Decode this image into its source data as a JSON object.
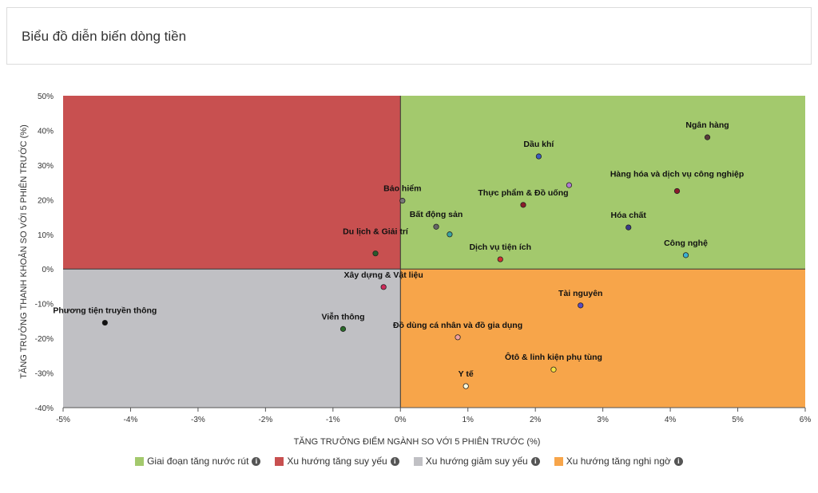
{
  "page": {
    "title": "Biểu đồ diễn biến dòng tiền"
  },
  "chart_data": {
    "type": "scatter",
    "xlabel": "TĂNG TRƯỞNG ĐIỂM NGÀNH SO VỚI 5 PHIÊN TRƯỚC (%)",
    "ylabel": "TĂNG TRƯỞNG THANH KHOẢN SO VỚI 5 PHIÊN TRƯỚC (%)",
    "xlim": [
      -5,
      6
    ],
    "ylim": [
      -40,
      50
    ],
    "xticks": [
      -5,
      -4,
      -3,
      -2,
      -1,
      0,
      1,
      2,
      3,
      4,
      5,
      6
    ],
    "yticks": [
      -40,
      -30,
      -20,
      -10,
      0,
      10,
      20,
      30,
      40,
      50
    ],
    "tick_suffix": "%",
    "grid": false,
    "legend_position": "bottom",
    "quadrants": [
      {
        "name": "Giai đoạn tăng nước rút",
        "color": "#a3c96d"
      },
      {
        "name": "Xu hướng tăng suy yếu",
        "color": "#c85050"
      },
      {
        "name": "Xu hướng giảm suy yếu",
        "color": "#c0c0c4"
      },
      {
        "name": "Xu hướng tăng nghi ngờ",
        "color": "#f7a54a"
      }
    ],
    "points": [
      {
        "label": "Ngân hàng",
        "x": 4.55,
        "y": 38,
        "color": "#5a3a3a",
        "anchor": "middle",
        "dy": -12
      },
      {
        "label": "Dầu khí",
        "x": 2.05,
        "y": 32.5,
        "color": "#3b5bbf",
        "anchor": "middle",
        "dy": -12
      },
      {
        "label": "Hàng hóa và dịch vụ công nghiệp",
        "x": 4.1,
        "y": 22.5,
        "color": "#8b1a2a",
        "anchor": "middle",
        "dy": -18
      },
      {
        "label": "Thực phẩm & Đồ uống",
        "x": 1.82,
        "y": 18.5,
        "color": "#8b1a2a",
        "anchor": "middle",
        "dy": -12
      },
      {
        "label": "",
        "x": 2.5,
        "y": 24.2,
        "color": "#b07ad0",
        "anchor": "middle",
        "dy": 0
      },
      {
        "label": "Bảo hiểm",
        "x": 0.03,
        "y": 19.7,
        "color": "#777777",
        "anchor": "middle",
        "dy": -12
      },
      {
        "label": "Bất động sản",
        "x": 0.53,
        "y": 12.2,
        "color": "#666666",
        "anchor": "middle",
        "dy": -12
      },
      {
        "label": "",
        "x": 0.73,
        "y": 10,
        "color": "#3aa3a3",
        "anchor": "middle",
        "dy": 0
      },
      {
        "label": "Hóa chất",
        "x": 3.38,
        "y": 12,
        "color": "#3a3a8a",
        "anchor": "middle",
        "dy": -12
      },
      {
        "label": "Công nghệ",
        "x": 4.23,
        "y": 4,
        "color": "#3ab0d0",
        "anchor": "middle",
        "dy": -12
      },
      {
        "label": "Du lịch & Giải trí",
        "x": -0.37,
        "y": 4.5,
        "color": "#2a5a2a",
        "anchor": "middle",
        "dy": -24
      },
      {
        "label": "Dịch vụ tiện ích",
        "x": 1.48,
        "y": 2.8,
        "color": "#d03030",
        "anchor": "middle",
        "dy": -12
      },
      {
        "label": "Xây dựng & Vật liệu",
        "x": -0.25,
        "y": -5.2,
        "color": "#d02a5a",
        "anchor": "middle",
        "dy": -12
      },
      {
        "label": "Tài nguyên",
        "x": 2.67,
        "y": -10.5,
        "color": "#5a4ac0",
        "anchor": "middle",
        "dy": -12
      },
      {
        "label": "Phương tiện truyền thông",
        "x": -4.38,
        "y": -15.5,
        "color": "#111111",
        "anchor": "middle",
        "dy": -12
      },
      {
        "label": "Viễn thông",
        "x": -0.85,
        "y": -17.3,
        "color": "#2a6a2a",
        "anchor": "middle",
        "dy": -12
      },
      {
        "label": "Đồ dùng cá nhân và đồ gia dụng",
        "x": 0.85,
        "y": -19.7,
        "color": "#f4a0a0",
        "anchor": "middle",
        "dy": -12
      },
      {
        "label": "Ôtô & linh kiện phụ tùng",
        "x": 2.27,
        "y": -29,
        "color": "#f5e040",
        "anchor": "middle",
        "dy": -12
      },
      {
        "label": "Y tế",
        "x": 0.97,
        "y": -33.8,
        "color": "#ffffe0",
        "anchor": "middle",
        "dy": -12
      }
    ]
  }
}
